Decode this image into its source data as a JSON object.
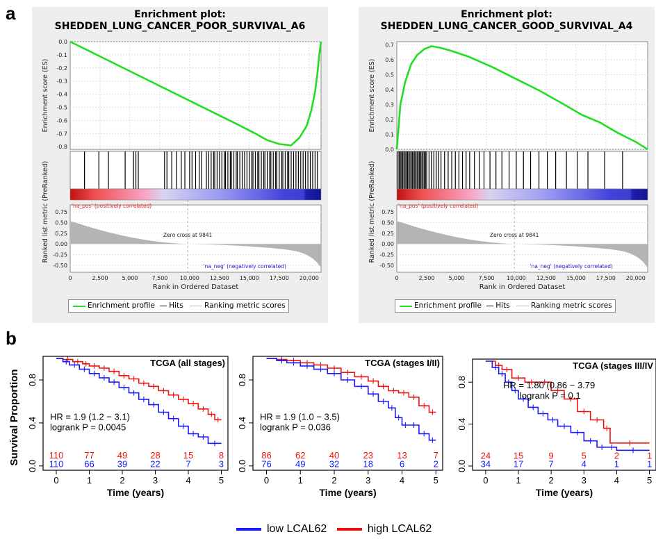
{
  "panel_labels": {
    "a": "a",
    "b": "b"
  },
  "colors": {
    "es_line": "#22dd22",
    "hits": "#000000",
    "metric": "#b4b4b4",
    "low": "#1a1aff",
    "high": "#ee1111",
    "gsea_bg": "#eeeeee"
  },
  "gsea_legend": {
    "profile": "Enrichment profile",
    "hits": "Hits",
    "metric": "Ranking metric scores"
  },
  "km_legend": {
    "low": "low LCAL62",
    "high": "high LCAL62"
  },
  "chart_data": [
    {
      "type": "line",
      "title": "Enrichment plot:",
      "subtitle": "SHEDDEN_LUNG_CANCER_POOR_SURVIVAL_A6",
      "ylabel": "Enrichment score (ES)",
      "ylabel2": "Ranked list metric (PreRanked)",
      "xlabel": "Rank in Ordered Dataset",
      "ylim": [
        -0.82,
        0.0
      ],
      "yticks": [
        "0.0",
        "-0.1",
        "-0.2",
        "-0.3",
        "-0.4",
        "-0.5",
        "-0.6",
        "-0.7",
        "-0.8"
      ],
      "xticks": [
        "0",
        "2,500",
        "5,000",
        "7,500",
        "10,000",
        "12,500",
        "15,000",
        "17,500",
        "20,000"
      ],
      "metric_yticks": [
        "0.75",
        "0.50",
        "0.25",
        "0.00",
        "-0.25",
        "-0.50"
      ],
      "xlim": [
        0,
        21000
      ],
      "es_x": [
        0,
        2000,
        4000,
        6000,
        8000,
        10000,
        12000,
        14000,
        15500,
        16500,
        17500,
        18500,
        19200,
        19800,
        20200,
        20500,
        20700,
        20850,
        21000
      ],
      "es_y": [
        0,
        -0.09,
        -0.18,
        -0.27,
        -0.36,
        -0.45,
        -0.54,
        -0.63,
        -0.7,
        -0.75,
        -0.78,
        -0.79,
        -0.73,
        -0.64,
        -0.52,
        -0.38,
        -0.24,
        -0.1,
        0
      ],
      "hits": [
        1200,
        2400,
        3200,
        4600,
        5300,
        5500,
        5700,
        7900,
        8100,
        8500,
        8900,
        9300,
        9600,
        10000,
        10200,
        10500,
        10800,
        11000,
        11400,
        11600,
        11800,
        12000,
        12100,
        12300,
        12500,
        12700,
        12900,
        13000,
        13200,
        13400,
        13500,
        13700,
        13900,
        14000,
        14200,
        14400,
        14600,
        14800,
        15000,
        15200,
        15300,
        15500,
        15700,
        15800,
        16000,
        16200,
        16300,
        16500,
        16700,
        16800,
        17000,
        17200,
        17300,
        17500,
        17700,
        17800,
        18000,
        18200,
        18300,
        18500,
        18700,
        18900,
        19100,
        19300,
        19500,
        19700,
        19900,
        20100,
        20300,
        20500,
        20700
      ],
      "pos_label": "'na_pos' (positively correlated)",
      "neg_label": "'na_neg' (negatively correlated)",
      "zero_cross": "Zero cross at 9841",
      "zero_cross_x": 9841
    },
    {
      "type": "line",
      "title": "Enrichment plot:",
      "subtitle": "SHEDDEN_LUNG_CANCER_GOOD_SURVIVAL_A4",
      "ylabel": "Enrichment score (ES)",
      "ylabel2": "Ranked list metric (PreRanked)",
      "xlabel": "Rank in Ordered Dataset",
      "ylim": [
        0.0,
        0.72
      ],
      "yticks": [
        "0.7",
        "0.6",
        "0.5",
        "0.4",
        "0.3",
        "0.2",
        "0.1",
        "0.0"
      ],
      "xticks": [
        "0",
        "2,500",
        "5,000",
        "7,500",
        "10,000",
        "12,500",
        "15,000",
        "17,500",
        "20,000"
      ],
      "metric_yticks": [
        "0.75",
        "0.50",
        "0.25",
        "0.00",
        "-0.25",
        "-0.50"
      ],
      "xlim": [
        0,
        21000
      ],
      "es_x": [
        0,
        300,
        700,
        1200,
        1700,
        2300,
        2900,
        3600,
        4500,
        6000,
        8000,
        10000,
        12000,
        14000,
        15500,
        17000,
        18500,
        20000,
        21000
      ],
      "es_y": [
        0,
        0.3,
        0.45,
        0.57,
        0.63,
        0.67,
        0.69,
        0.68,
        0.66,
        0.62,
        0.55,
        0.47,
        0.39,
        0.3,
        0.23,
        0.18,
        0.11,
        0.05,
        0
      ],
      "hits": [
        100,
        200,
        300,
        400,
        500,
        600,
        700,
        800,
        900,
        1000,
        1100,
        1200,
        1300,
        1400,
        1500,
        1600,
        1700,
        1800,
        1900,
        2000,
        2100,
        2200,
        2300,
        2400,
        2500,
        2700,
        2900,
        3100,
        3300,
        3500,
        3700,
        4000,
        4300,
        4600,
        4900,
        5200,
        5500,
        5800,
        6100,
        6500,
        6900,
        7300,
        7800,
        8300,
        8800,
        9400,
        10000,
        10600,
        11200,
        11900,
        12600,
        13300,
        14200,
        15100,
        16000,
        17400,
        18900
      ],
      "pos_label": "'na_pos' (positively correlated)",
      "neg_label": "'na_neg' (negatively correlated)",
      "zero_cross": "Zero cross at 9841",
      "zero_cross_x": 9841
    },
    {
      "type": "line",
      "title": "TCGA (all stages)",
      "ylabel": "Survival Proportion",
      "xlabel": "Time (years)",
      "xlim": [
        -0.4,
        5.2
      ],
      "ylim": [
        -0.04,
        1.02
      ],
      "xticks": [
        0,
        1,
        2,
        3,
        4,
        5
      ],
      "yticks": [
        0.0,
        0.4,
        0.8
      ],
      "hr": "HR = 1.9 (1.2 − 3.1)",
      "logrank": "logrank P = 0.0045",
      "series": [
        {
          "name": "high LCAL62",
          "x": [
            0,
            0.2,
            0.5,
            0.8,
            1.0,
            1.3,
            1.6,
            1.9,
            2.2,
            2.5,
            2.8,
            3.1,
            3.4,
            3.7,
            4.0,
            4.3,
            4.6,
            4.8,
            5.0
          ],
          "y": [
            1.0,
            0.99,
            0.97,
            0.95,
            0.93,
            0.91,
            0.88,
            0.84,
            0.81,
            0.77,
            0.74,
            0.7,
            0.66,
            0.62,
            0.58,
            0.53,
            0.48,
            0.43,
            0.43
          ],
          "risk": [
            "110",
            "77",
            "49",
            "28",
            "15",
            "8"
          ]
        },
        {
          "name": "low LCAL62",
          "x": [
            0,
            0.2,
            0.4,
            0.7,
            1.0,
            1.3,
            1.6,
            1.9,
            2.2,
            2.5,
            2.8,
            3.1,
            3.4,
            3.7,
            4.0,
            4.3,
            4.6,
            5.0
          ],
          "y": [
            1.0,
            0.97,
            0.94,
            0.9,
            0.86,
            0.82,
            0.78,
            0.73,
            0.68,
            0.62,
            0.57,
            0.5,
            0.44,
            0.37,
            0.3,
            0.27,
            0.21,
            0.21
          ],
          "risk": [
            "110",
            "66",
            "39",
            "22",
            "7",
            "3"
          ]
        }
      ]
    },
    {
      "type": "line",
      "title": "TCGA (stages I/II)",
      "xlabel": "Time (years)",
      "xlim": [
        -0.4,
        5.2
      ],
      "ylim": [
        -0.04,
        1.02
      ],
      "xticks": [
        0,
        1,
        2,
        3,
        4,
        5
      ],
      "yticks": [
        0.0,
        0.4,
        0.8
      ],
      "hr": "HR = 1.9 (1.0 − 3.5)",
      "logrank": "logrank P = 0.036",
      "series": [
        {
          "name": "high LCAL62",
          "x": [
            0,
            0.3,
            0.6,
            1.0,
            1.4,
            1.8,
            2.2,
            2.6,
            3.0,
            3.3,
            3.6,
            3.9,
            4.2,
            4.5,
            4.8,
            5.0
          ],
          "y": [
            1.0,
            0.99,
            0.98,
            0.96,
            0.94,
            0.91,
            0.87,
            0.83,
            0.79,
            0.74,
            0.7,
            0.68,
            0.64,
            0.56,
            0.5,
            0.5
          ],
          "risk": [
            "86",
            "62",
            "40",
            "23",
            "13",
            "7"
          ]
        },
        {
          "name": "low LCAL62",
          "x": [
            0,
            0.3,
            0.6,
            1.0,
            1.4,
            1.8,
            2.2,
            2.6,
            3.0,
            3.3,
            3.6,
            3.8,
            4.0,
            4.2,
            4.5,
            4.8,
            5.0
          ],
          "y": [
            1.0,
            0.98,
            0.96,
            0.93,
            0.9,
            0.86,
            0.8,
            0.74,
            0.67,
            0.6,
            0.54,
            0.45,
            0.38,
            0.38,
            0.3,
            0.24,
            0.24
          ],
          "risk": [
            "76",
            "49",
            "32",
            "18",
            "6",
            "2"
          ]
        }
      ]
    },
    {
      "type": "line",
      "title": "TCGA (stages III/IV",
      "xlabel": "Time (years)",
      "xlim": [
        -0.4,
        5.2
      ],
      "ylim": [
        -0.04,
        1.02
      ],
      "xticks": [
        0,
        1,
        2,
        3,
        4,
        5
      ],
      "yticks": [
        0.0,
        0.4,
        0.8
      ],
      "hr": "HR = 1.80 (0.86 − 3.79",
      "logrank": "logrank P = 0.1",
      "series": [
        {
          "name": "high LCAL62",
          "x": [
            0,
            0.3,
            0.5,
            0.8,
            1.2,
            1.6,
            2.0,
            2.4,
            2.8,
            3.2,
            3.6,
            3.8,
            5.0
          ],
          "y": [
            1.0,
            0.96,
            0.92,
            0.84,
            0.8,
            0.8,
            0.72,
            0.64,
            0.52,
            0.44,
            0.36,
            0.22,
            0.22
          ],
          "risk": [
            "24",
            "15",
            "9",
            "5",
            "2",
            "1"
          ]
        },
        {
          "name": "low LCAL62",
          "x": [
            0,
            0.2,
            0.4,
            0.6,
            0.8,
            1.0,
            1.3,
            1.6,
            1.9,
            2.2,
            2.6,
            3.0,
            3.4,
            3.7,
            4.0,
            5.0
          ],
          "y": [
            1.0,
            0.94,
            0.88,
            0.8,
            0.72,
            0.64,
            0.56,
            0.5,
            0.44,
            0.38,
            0.32,
            0.24,
            0.18,
            0.18,
            0.15,
            0.15
          ],
          "risk": [
            "34",
            "17",
            "7",
            "4",
            "1",
            "1"
          ]
        }
      ]
    }
  ]
}
